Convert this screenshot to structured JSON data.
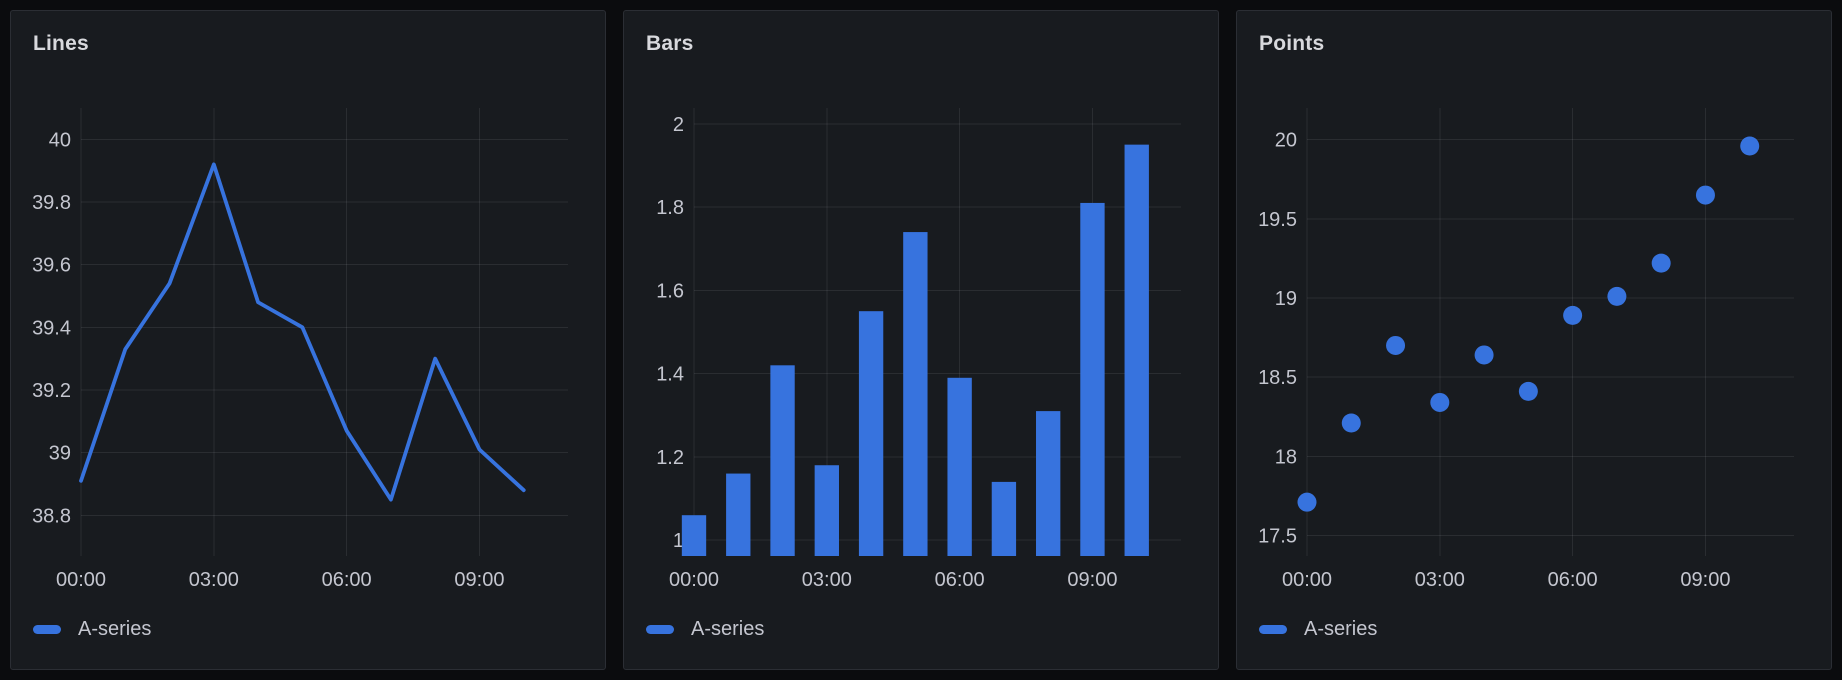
{
  "colors": {
    "series_blue": "#3773DE",
    "page_bg": "#0B0C0E",
    "panel_bg": "#181B1F",
    "panel_border": "#2B2E34",
    "grid": "rgba(204,204,220,0.10)",
    "tick_text": "#C4C6CF",
    "title_text": "#D8D9DD",
    "legend_text": "#C4C6CF"
  },
  "panels": [
    {
      "title": "Lines",
      "legend_label": "A-series"
    },
    {
      "title": "Bars",
      "legend_label": "A-series"
    },
    {
      "title": "Points",
      "legend_label": "A-series"
    }
  ],
  "chart_data": [
    {
      "type": "line",
      "title": "Lines",
      "hours": [
        0,
        1,
        2,
        3,
        4,
        5,
        6,
        7,
        8,
        9,
        10
      ],
      "categories": [
        "00:00",
        "01:00",
        "02:00",
        "03:00",
        "04:00",
        "05:00",
        "06:00",
        "07:00",
        "08:00",
        "09:00",
        "10:00"
      ],
      "series": [
        {
          "name": "A-series",
          "values": [
            38.91,
            39.33,
            39.54,
            39.92,
            39.48,
            39.4,
            39.07,
            38.85,
            39.3,
            39.01,
            38.88
          ]
        }
      ],
      "x_ticks": [
        {
          "hour": 0,
          "label": "00:00"
        },
        {
          "hour": 3,
          "label": "03:00"
        },
        {
          "hour": 6,
          "label": "06:00"
        },
        {
          "hour": 9,
          "label": "09:00"
        }
      ],
      "y_ticks": [
        {
          "value": 38.8,
          "label": "38.8"
        },
        {
          "value": 39,
          "label": "39"
        },
        {
          "value": 39.2,
          "label": "39.2"
        },
        {
          "value": 39.4,
          "label": "39.4"
        },
        {
          "value": 39.6,
          "label": "39.6"
        },
        {
          "value": 39.8,
          "label": "39.8"
        },
        {
          "value": 40,
          "label": "40"
        }
      ],
      "xlim": [
        0,
        11
      ],
      "ylim": [
        38.67,
        40.1
      ],
      "grid": true,
      "legend_position": "bottom-left"
    },
    {
      "type": "bar",
      "title": "Bars",
      "hours": [
        0,
        1,
        2,
        3,
        4,
        5,
        6,
        7,
        8,
        9,
        10
      ],
      "categories": [
        "00:00",
        "01:00",
        "02:00",
        "03:00",
        "04:00",
        "05:00",
        "06:00",
        "07:00",
        "08:00",
        "09:00",
        "10:00"
      ],
      "series": [
        {
          "name": "A-series",
          "values": [
            1.06,
            1.16,
            1.42,
            1.18,
            1.55,
            1.74,
            1.39,
            1.14,
            1.31,
            1.81,
            1.95
          ]
        }
      ],
      "bar_width_ratio": 0.55,
      "x_ticks": [
        {
          "hour": 0,
          "label": "00:00"
        },
        {
          "hour": 3,
          "label": "03:00"
        },
        {
          "hour": 6,
          "label": "06:00"
        },
        {
          "hour": 9,
          "label": "09:00"
        }
      ],
      "y_ticks": [
        {
          "value": 1,
          "label": "1"
        },
        {
          "value": 1.2,
          "label": "1.2"
        },
        {
          "value": 1.4,
          "label": "1.4"
        },
        {
          "value": 1.6,
          "label": "1.6"
        },
        {
          "value": 1.8,
          "label": "1.8"
        },
        {
          "value": 2,
          "label": "2"
        }
      ],
      "xlim": [
        0,
        11
      ],
      "ylim": [
        0.962,
        2.038
      ],
      "grid": true,
      "legend_position": "bottom-left"
    },
    {
      "type": "scatter",
      "title": "Points",
      "hours": [
        0,
        1,
        2,
        3,
        4,
        5,
        6,
        7,
        8,
        9,
        10
      ],
      "categories": [
        "00:00",
        "01:00",
        "02:00",
        "03:00",
        "04:00",
        "05:00",
        "06:00",
        "07:00",
        "08:00",
        "09:00",
        "10:00"
      ],
      "series": [
        {
          "name": "A-series",
          "values": [
            17.71,
            18.21,
            18.7,
            18.34,
            18.64,
            18.41,
            18.89,
            19.01,
            19.22,
            19.65,
            19.96
          ]
        }
      ],
      "x_ticks": [
        {
          "hour": 0,
          "label": "00:00"
        },
        {
          "hour": 3,
          "label": "03:00"
        },
        {
          "hour": 6,
          "label": "06:00"
        },
        {
          "hour": 9,
          "label": "09:00"
        }
      ],
      "y_ticks": [
        {
          "value": 17.5,
          "label": "17.5"
        },
        {
          "value": 18,
          "label": "18"
        },
        {
          "value": 18.5,
          "label": "18.5"
        },
        {
          "value": 19,
          "label": "19"
        },
        {
          "value": 19.5,
          "label": "19.5"
        },
        {
          "value": 20,
          "label": "20"
        }
      ],
      "xlim": [
        0,
        11
      ],
      "ylim": [
        17.37,
        20.2
      ],
      "grid": true,
      "legend_position": "bottom-left"
    }
  ]
}
